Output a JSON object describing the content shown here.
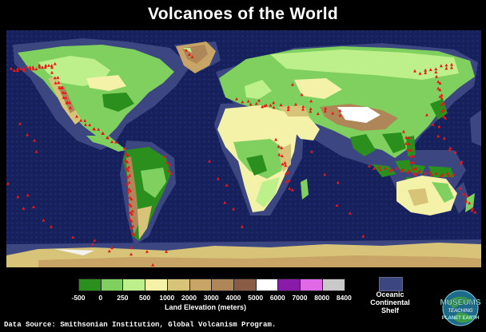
{
  "title": "Volcanoes of the World",
  "colors": {
    "ocean": "#16205a",
    "shelf": "#3c4680",
    "volcano": "#e81818",
    "ice": "#f2f2f2"
  },
  "legend": {
    "swatch_colors": [
      "#2a8f1c",
      "#7fd05e",
      "#bdf08a",
      "#f3f2a8",
      "#d8c479",
      "#c8a567",
      "#ae8658",
      "#8a5c46",
      "#ffffff",
      "#8a1aa8",
      "#e06ae6",
      "#c9c9c9"
    ],
    "tick_labels": [
      "-500",
      "0",
      "250",
      "500",
      "1000",
      "2000",
      "3000",
      "4000",
      "5000",
      "6000",
      "7000",
      "8000",
      "8400"
    ],
    "caption": "Land Elevation (meters)"
  },
  "shelf_legend": {
    "label_line1": "Oceanic",
    "label_line2": "Continental",
    "label_line3": "Shelf"
  },
  "source_text": "Data Source: Smithsonian Institution, Global Volcanism Program.",
  "logo": {
    "line1": "MUSEUMS",
    "line2": "TEACHING",
    "line3": "PLANET EARTH"
  }
}
